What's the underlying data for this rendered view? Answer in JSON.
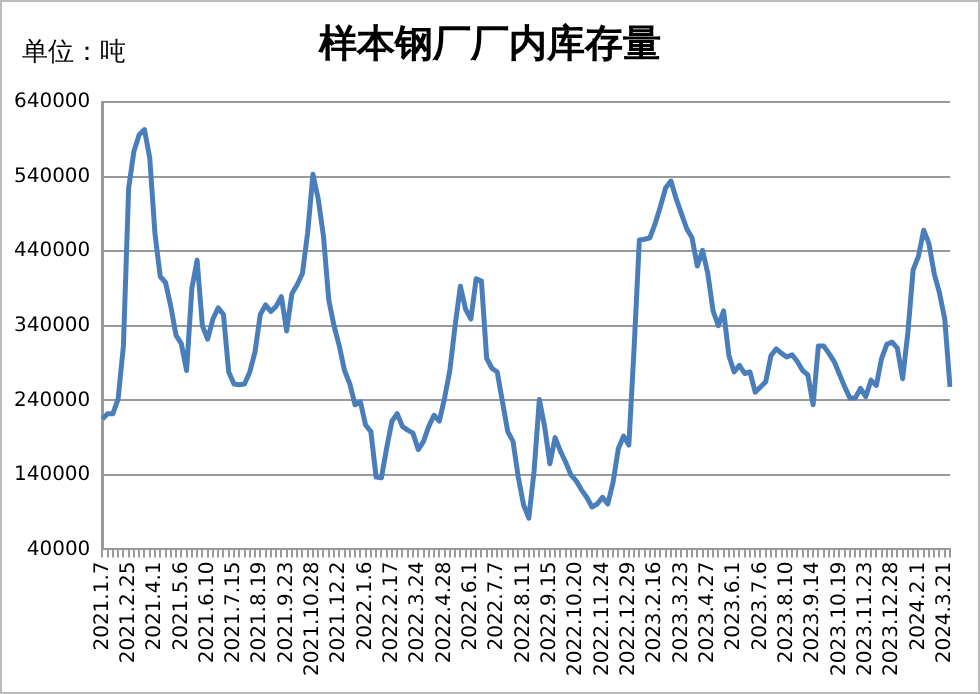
{
  "chart_data": {
    "type": "line",
    "title": "样本钢厂厂内库存量",
    "annotations": [
      "单位：吨"
    ],
    "categories": [
      "2021.1.7",
      null,
      null,
      null,
      null,
      "2021.2.25",
      null,
      null,
      null,
      null,
      "2021.4.1",
      null,
      null,
      null,
      null,
      "2021.5.6",
      null,
      null,
      null,
      null,
      "2021.6.10",
      null,
      null,
      null,
      null,
      "2021.7.15",
      null,
      null,
      null,
      null,
      "2021.8.19",
      null,
      null,
      null,
      null,
      "2021.9.23",
      null,
      null,
      null,
      null,
      "2021.10.28",
      null,
      null,
      null,
      null,
      "2021.12.2",
      null,
      null,
      null,
      null,
      "2022.1.6",
      null,
      null,
      null,
      null,
      "2022.2.17",
      null,
      null,
      null,
      null,
      "2022.3.24",
      null,
      null,
      null,
      null,
      "2022.4.28",
      null,
      null,
      null,
      null,
      "2022.6.1",
      null,
      null,
      null,
      null,
      "2022.7.7",
      null,
      null,
      null,
      null,
      "2022.8.11",
      null,
      null,
      null,
      null,
      "2022.9.15",
      null,
      null,
      null,
      null,
      "2022.10.20",
      null,
      null,
      null,
      null,
      "2022.11.24",
      null,
      null,
      null,
      null,
      "2022.12.29",
      null,
      null,
      null,
      null,
      "2023.2.16",
      null,
      null,
      null,
      null,
      "2023.3.23",
      null,
      null,
      null,
      null,
      "2023.4.27",
      null,
      null,
      null,
      null,
      "2023.6.1",
      null,
      null,
      null,
      null,
      "2023.7.6",
      null,
      null,
      null,
      null,
      "2023.8.10",
      null,
      null,
      null,
      null,
      "2023.9.14",
      null,
      null,
      null,
      null,
      "2023.10.19",
      null,
      null,
      null,
      null,
      "2023.11.23",
      null,
      null,
      null,
      null,
      "2023.12.28",
      null,
      null,
      null,
      null,
      "2024.2.1",
      null,
      null,
      null,
      null,
      "2024.3.21",
      null
    ],
    "values": [
      215000,
      222000,
      222000,
      242000,
      313000,
      525000,
      574000,
      596000,
      603000,
      565000,
      463000,
      406000,
      398000,
      366000,
      327000,
      316000,
      280000,
      390000,
      428000,
      340000,
      322000,
      349000,
      364000,
      355000,
      278000,
      262000,
      261000,
      262000,
      278000,
      305000,
      355000,
      368000,
      359000,
      366000,
      379000,
      333000,
      383000,
      395000,
      410000,
      465000,
      543000,
      510000,
      460000,
      375000,
      340000,
      313000,
      280000,
      262000,
      234000,
      238000,
      207000,
      198000,
      137000,
      136000,
      176000,
      212000,
      222000,
      205000,
      200000,
      196000,
      174000,
      185000,
      205000,
      220000,
      212000,
      243000,
      280000,
      340000,
      393000,
      362000,
      349000,
      403000,
      400000,
      296000,
      283000,
      278000,
      238000,
      198000,
      185000,
      137000,
      100000,
      82000,
      145000,
      241000,
      205000,
      155000,
      190000,
      172000,
      157000,
      140000,
      132000,
      120000,
      110000,
      97000,
      101000,
      110000,
      101000,
      130000,
      175000,
      192000,
      180000,
      310000,
      455000,
      456000,
      458000,
      477000,
      500000,
      525000,
      534000,
      510000,
      490000,
      470000,
      458000,
      420000,
      441000,
      410000,
      360000,
      340000,
      360000,
      300000,
      278000,
      287000,
      276000,
      278000,
      251000,
      258000,
      265000,
      300000,
      309000,
      303000,
      298000,
      301000,
      292000,
      280000,
      274000,
      234000,
      313000,
      313000,
      303000,
      292000,
      275000,
      258000,
      243000,
      243000,
      256000,
      245000,
      267000,
      260000,
      296000,
      315000,
      318000,
      310000,
      269000,
      331000,
      415000,
      433000,
      468000,
      450000,
      410000,
      384000,
      349000,
      258000
    ],
    "color": "#4a7ebb",
    "ylim": [
      40000,
      640000
    ],
    "yticks": [
      40000,
      140000,
      240000,
      340000,
      440000,
      540000,
      640000
    ],
    "grid": "y"
  }
}
